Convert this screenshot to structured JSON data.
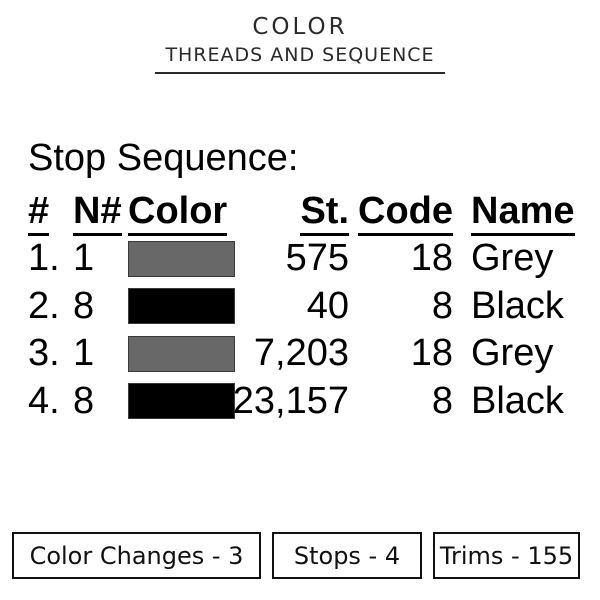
{
  "header": {
    "title": "COLOR",
    "subtitle": "THREADS AND SEQUENCE"
  },
  "stop_sequence": {
    "heading": "Stop Sequence:",
    "columns": [
      "#",
      "N#",
      "Color",
      "St.",
      "Code",
      "Name"
    ],
    "rows": [
      {
        "num": "1.",
        "needle": "1",
        "swatch_color": "#686868",
        "stitches": "575",
        "code": "18",
        "name": "Grey"
      },
      {
        "num": "2.",
        "needle": "8",
        "swatch_color": "#000000",
        "stitches": "40",
        "code": "8",
        "name": "Black"
      },
      {
        "num": "3.",
        "needle": "1",
        "swatch_color": "#686868",
        "stitches": "7,203",
        "code": "18",
        "name": "Grey"
      },
      {
        "num": "4.",
        "needle": "8",
        "swatch_color": "#000000",
        "stitches": "23,157",
        "code": "8",
        "name": "Black"
      }
    ]
  },
  "summary": {
    "color_changes": "Color Changes - 3",
    "stops": "Stops - 4",
    "trims": "Trims - 155"
  },
  "colors": {
    "grey_swatch": "#686868",
    "black_swatch": "#000000",
    "text": "#000000",
    "title_text": "#2a2a2a"
  }
}
